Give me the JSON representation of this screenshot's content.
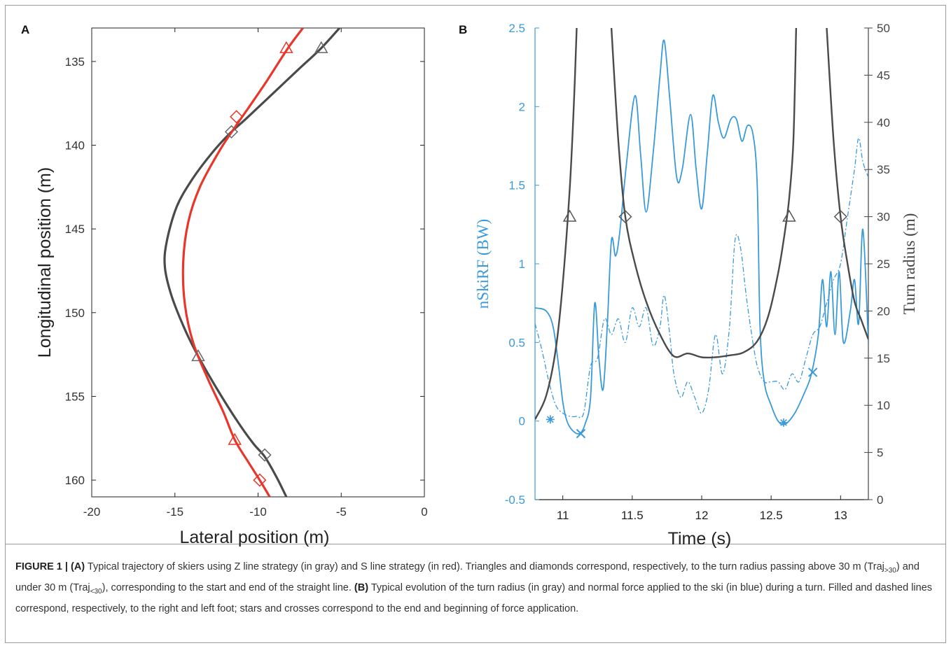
{
  "panelA": {
    "label": "A",
    "xlabel": "Lateral position (m)",
    "ylabel": "Longitudinal position (m)",
    "xticks": [
      "-20",
      "-15",
      "-10",
      "-5",
      "0"
    ],
    "yticks": [
      "135",
      "140",
      "145",
      "150",
      "155",
      "160"
    ]
  },
  "panelB": {
    "label": "B",
    "xlabel": "Time (s)",
    "ylabel_left": "nSkiRF (BW)",
    "ylabel_right": "Turn radius (m)",
    "xticks": [
      "11",
      "11.5",
      "12",
      "12.5",
      "13"
    ],
    "yticks_left": [
      "-0.5",
      "0",
      "0.5",
      "1",
      "1.5",
      "2",
      "2.5"
    ],
    "yticks_right": [
      "0",
      "5",
      "10",
      "15",
      "20",
      "25",
      "30",
      "35",
      "40",
      "45",
      "50"
    ]
  },
  "caption": {
    "fig_label": "FIGURE 1 |",
    "a_label": "(A)",
    "a_text": "Typical trajectory of skiers using Z line strategy (in gray) and S line strategy (in red). Triangles and diamonds correspond, respectively, to the turn radius passing above 30 m (Traj",
    "a_sub1": ">30",
    "a_mid": ") and under 30 m (Traj",
    "a_sub2": "<30",
    "a_end": "), corresponding to the start and end of the straight line.",
    "b_label": "(B)",
    "b_text": "Typical evolution of the turn radius (in gray) and normal force applied to the ski (in blue) during a turn. Filled and dashed lines correspond, respectively, to the right and left foot; stars and crosses correspond to the end and beginning of force application."
  },
  "colors": {
    "gray": "#4a4a4a",
    "red": "#e8372a",
    "blue": "#3a9ad9"
  },
  "chart_data": [
    {
      "type": "line",
      "panel": "A",
      "xlabel": "Lateral position (m)",
      "ylabel": "Longitudinal position (m)",
      "xlim": [
        -20,
        0
      ],
      "ylim": [
        161,
        133
      ],
      "y_reversed": true,
      "series": [
        {
          "color": "gray",
          "points": [
            [
              -5.1,
              133
            ],
            [
              -6.2,
              134.2
            ],
            [
              -7.6,
              135.5
            ],
            [
              -9.2,
              137
            ],
            [
              -10.7,
              138.4
            ],
            [
              -11.7,
              139.3
            ],
            [
              -12.8,
              140.5
            ],
            [
              -14,
              142.1
            ],
            [
              -14.9,
              143.7
            ],
            [
              -15.5,
              145.8
            ],
            [
              -15.6,
              147.3
            ],
            [
              -15.2,
              149
            ],
            [
              -14.4,
              151
            ],
            [
              -13.6,
              152.6
            ],
            [
              -12.5,
              154.5
            ],
            [
              -11.3,
              156.4
            ],
            [
              -10.3,
              157.8
            ],
            [
              -9.6,
              158.6
            ],
            [
              -8.9,
              159.8
            ],
            [
              -8.3,
              161
            ]
          ],
          "markers": [
            {
              "shape": "triangle",
              "x": -6.2,
              "y": 134.2
            },
            {
              "shape": "diamond",
              "x": -11.6,
              "y": 139.2
            },
            {
              "shape": "triangle",
              "x": -13.6,
              "y": 152.6
            },
            {
              "shape": "diamond",
              "x": -9.6,
              "y": 158.5
            }
          ]
        },
        {
          "color": "red",
          "points": [
            [
              -7.3,
              133
            ],
            [
              -8.2,
              134.2
            ],
            [
              -9.5,
              136.2
            ],
            [
              -10.6,
              137.8
            ],
            [
              -11.3,
              138.8
            ],
            [
              -12.3,
              140.3
            ],
            [
              -13.5,
              142.5
            ],
            [
              -14.2,
              144.6
            ],
            [
              -14.5,
              147
            ],
            [
              -14.4,
              149.5
            ],
            [
              -13.9,
              151.8
            ],
            [
              -13,
              154
            ],
            [
              -12.1,
              155.9
            ],
            [
              -11.4,
              157.6
            ],
            [
              -10.6,
              158.9
            ],
            [
              -9.9,
              160
            ],
            [
              -9.3,
              161
            ]
          ],
          "markers": [
            {
              "shape": "triangle",
              "x": -8.3,
              "y": 134.2
            },
            {
              "shape": "diamond",
              "x": -11.3,
              "y": 138.3
            },
            {
              "shape": "triangle",
              "x": -11.4,
              "y": 157.6
            },
            {
              "shape": "diamond",
              "x": -9.9,
              "y": 160
            }
          ]
        }
      ]
    },
    {
      "type": "line",
      "panel": "B",
      "xlabel": "Time (s)",
      "ylabel": "nSkiRF (BW)",
      "ylabel_right": "Turn radius (m)",
      "xlim": [
        10.8,
        13.2
      ],
      "ylim": [
        -0.5,
        2.5
      ],
      "ylim_right": [
        0,
        50
      ],
      "series": [
        {
          "color": "blue",
          "style": "solid",
          "axis": "left",
          "points": [
            [
              10.8,
              0.72
            ],
            [
              10.88,
              0.7
            ],
            [
              10.93,
              0.6
            ],
            [
              10.97,
              0.35
            ],
            [
              11.0,
              0.12
            ],
            [
              11.03,
              0.0
            ],
            [
              11.07,
              -0.06
            ],
            [
              11.12,
              -0.08
            ],
            [
              11.16,
              -0.02
            ],
            [
              11.2,
              0.15
            ],
            [
              11.23,
              0.75
            ],
            [
              11.26,
              0.4
            ],
            [
              11.29,
              0.2
            ],
            [
              11.32,
              0.6
            ],
            [
              11.35,
              1.15
            ],
            [
              11.38,
              1.05
            ],
            [
              11.41,
              1.2
            ],
            [
              11.46,
              1.65
            ],
            [
              11.52,
              2.07
            ],
            [
              11.56,
              1.7
            ],
            [
              11.6,
              1.33
            ],
            [
              11.65,
              1.7
            ],
            [
              11.7,
              2.2
            ],
            [
              11.73,
              2.42
            ],
            [
              11.77,
              2.05
            ],
            [
              11.82,
              1.55
            ],
            [
              11.86,
              1.6
            ],
            [
              11.92,
              1.95
            ],
            [
              11.96,
              1.6
            ],
            [
              12.0,
              1.35
            ],
            [
              12.04,
              1.7
            ],
            [
              12.08,
              2.07
            ],
            [
              12.12,
              1.9
            ],
            [
              12.16,
              1.8
            ],
            [
              12.21,
              1.92
            ],
            [
              12.25,
              1.92
            ],
            [
              12.29,
              1.78
            ],
            [
              12.33,
              1.88
            ],
            [
              12.37,
              1.82
            ],
            [
              12.4,
              1.5
            ],
            [
              12.42,
              0.6
            ],
            [
              12.45,
              0.25
            ],
            [
              12.5,
              0.1
            ],
            [
              12.55,
              0.0
            ],
            [
              12.6,
              -0.02
            ],
            [
              12.67,
              0.05
            ],
            [
              12.74,
              0.18
            ],
            [
              12.79,
              0.3
            ],
            [
              12.84,
              0.55
            ],
            [
              12.87,
              0.9
            ],
            [
              12.9,
              0.6
            ],
            [
              12.93,
              0.95
            ],
            [
              12.96,
              0.55
            ],
            [
              12.99,
              0.95
            ],
            [
              13.02,
              0.5
            ],
            [
              13.07,
              0.7
            ],
            [
              13.1,
              0.9
            ],
            [
              13.13,
              0.62
            ],
            [
              13.16,
              1.22
            ],
            [
              13.2,
              0.5
            ]
          ],
          "markers": [
            {
              "shape": "star",
              "x": 10.91,
              "y": 0.01
            },
            {
              "shape": "cross",
              "x": 11.13,
              "y": -0.08
            },
            {
              "shape": "star",
              "x": 12.59,
              "y": -0.01
            },
            {
              "shape": "cross",
              "x": 12.8,
              "y": 0.31
            }
          ]
        },
        {
          "color": "blue",
          "style": "dash-dot",
          "axis": "left",
          "points": [
            [
              10.8,
              0.62
            ],
            [
              10.85,
              0.45
            ],
            [
              10.9,
              0.25
            ],
            [
              10.95,
              0.1
            ],
            [
              11.0,
              0.05
            ],
            [
              11.05,
              0.03
            ],
            [
              11.1,
              0.03
            ],
            [
              11.15,
              0.05
            ],
            [
              11.2,
              0.35
            ],
            [
              11.25,
              0.4
            ],
            [
              11.3,
              0.65
            ],
            [
              11.35,
              0.55
            ],
            [
              11.4,
              0.65
            ],
            [
              11.45,
              0.5
            ],
            [
              11.5,
              0.72
            ],
            [
              11.55,
              0.6
            ],
            [
              11.6,
              0.72
            ],
            [
              11.65,
              0.48
            ],
            [
              11.7,
              0.6
            ],
            [
              11.73,
              0.8
            ],
            [
              11.77,
              0.55
            ],
            [
              11.8,
              0.3
            ],
            [
              11.85,
              0.15
            ],
            [
              11.9,
              0.25
            ],
            [
              11.95,
              0.15
            ],
            [
              12.0,
              0.05
            ],
            [
              12.05,
              0.2
            ],
            [
              12.1,
              0.55
            ],
            [
              12.15,
              0.3
            ],
            [
              12.2,
              0.6
            ],
            [
              12.24,
              1.15
            ],
            [
              12.28,
              1.1
            ],
            [
              12.32,
              0.8
            ],
            [
              12.36,
              0.55
            ],
            [
              12.4,
              0.35
            ],
            [
              12.45,
              0.25
            ],
            [
              12.5,
              0.25
            ],
            [
              12.55,
              0.25
            ],
            [
              12.6,
              0.2
            ],
            [
              12.65,
              0.3
            ],
            [
              12.7,
              0.25
            ],
            [
              12.75,
              0.4
            ],
            [
              12.8,
              0.55
            ],
            [
              12.85,
              0.6
            ],
            [
              12.9,
              0.75
            ],
            [
              12.95,
              0.9
            ],
            [
              13.0,
              1.0
            ],
            [
              13.05,
              1.3
            ],
            [
              13.1,
              1.6
            ],
            [
              13.13,
              1.8
            ],
            [
              13.16,
              1.65
            ],
            [
              13.2,
              1.55
            ]
          ]
        },
        {
          "color": "gray",
          "style": "solid",
          "axis": "right",
          "points": [
            [
              10.8,
              8.5
            ],
            [
              10.88,
              11
            ],
            [
              10.95,
              16
            ],
            [
              11.0,
              23
            ],
            [
              11.05,
              33
            ],
            [
              11.08,
              42
            ],
            [
              11.1,
              50
            ]
          ],
          "markers": [
            {
              "shape": "triangle",
              "x": 11.05,
              "y": 30
            }
          ]
        },
        {
          "color": "gray",
          "style": "solid",
          "axis": "right",
          "points": [
            [
              11.35,
              50
            ],
            [
              11.4,
              38
            ],
            [
              11.45,
              30
            ],
            [
              11.52,
              25
            ],
            [
              11.6,
              21
            ],
            [
              11.7,
              17.5
            ],
            [
              11.8,
              15.2
            ],
            [
              11.9,
              15.5
            ],
            [
              12.0,
              15.1
            ],
            [
              12.1,
              15.1
            ],
            [
              12.2,
              15.3
            ],
            [
              12.3,
              15.6
            ],
            [
              12.4,
              16.8
            ],
            [
              12.48,
              19.5
            ],
            [
              12.55,
              24
            ],
            [
              12.6,
              28.5
            ],
            [
              12.63,
              32
            ],
            [
              12.66,
              38
            ],
            [
              12.68,
              50
            ]
          ],
          "markers": [
            {
              "shape": "diamond",
              "x": 11.45,
              "y": 30
            },
            {
              "shape": "triangle",
              "x": 12.63,
              "y": 30
            }
          ]
        },
        {
          "color": "gray",
          "style": "solid",
          "axis": "right",
          "points": [
            [
              12.9,
              50
            ],
            [
              12.95,
              38
            ],
            [
              13.0,
              30
            ],
            [
              13.05,
              25
            ],
            [
              13.1,
              21
            ],
            [
              13.15,
              19
            ],
            [
              13.2,
              17
            ]
          ],
          "markers": [
            {
              "shape": "diamond",
              "x": 13.0,
              "y": 30
            }
          ]
        }
      ]
    }
  ]
}
